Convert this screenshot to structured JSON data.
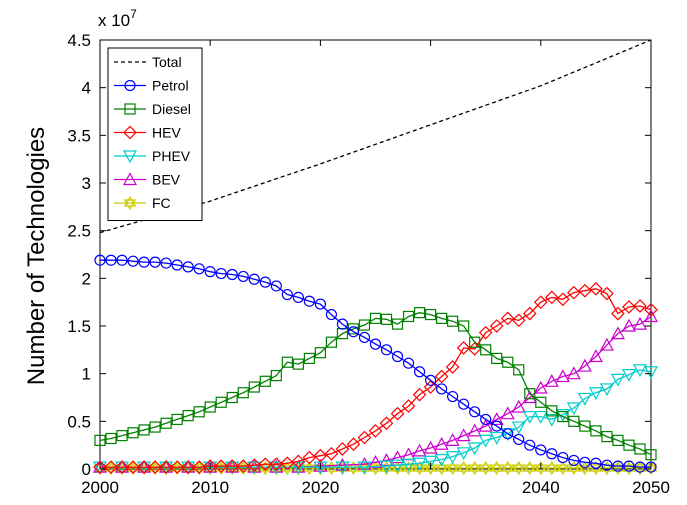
{
  "chart_data": {
    "type": "line",
    "title": "",
    "xlabel": "",
    "ylabel": "Number of Technologies",
    "y_multiplier": {
      "base": "x 10",
      "exponent": "7"
    },
    "xlim": [
      2000,
      2050
    ],
    "ylim": [
      0,
      4.5
    ],
    "x_ticks": [
      2000,
      2010,
      2020,
      2030,
      2040,
      2050
    ],
    "x_tick_labels": [
      "2000",
      "2010",
      "2020",
      "2030",
      "2040",
      "2050"
    ],
    "y_ticks": [
      0,
      0.5,
      1,
      1.5,
      2,
      2.5,
      3,
      3.5,
      4,
      4.5
    ],
    "y_tick_labels": [
      "0",
      "0.5",
      "1",
      "1.5",
      "2",
      "2.5",
      "3",
      "3.5",
      "4",
      "4.5"
    ],
    "grid": false,
    "legend_position": "top-left",
    "series": [
      {
        "name": "Total",
        "color": "#000000",
        "marker": "none",
        "line": "dashed",
        "x": [
          2000,
          2010,
          2020,
          2030,
          2040,
          2050
        ],
        "values": [
          2.48,
          2.81,
          3.2,
          3.61,
          4.02,
          4.5
        ]
      },
      {
        "name": "Petrol",
        "color": "#0000ff",
        "marker": "circle",
        "line": "solid",
        "x": [
          2000,
          2001,
          2002,
          2003,
          2004,
          2005,
          2006,
          2007,
          2008,
          2009,
          2010,
          2011,
          2012,
          2013,
          2014,
          2015,
          2016,
          2017,
          2018,
          2019,
          2020,
          2021,
          2022,
          2023,
          2024,
          2025,
          2026,
          2027,
          2028,
          2029,
          2030,
          2031,
          2032,
          2033,
          2034,
          2035,
          2036,
          2037,
          2038,
          2039,
          2040,
          2041,
          2042,
          2043,
          2044,
          2045,
          2046,
          2047,
          2048,
          2049,
          2050
        ],
        "values": [
          2.19,
          2.19,
          2.19,
          2.18,
          2.17,
          2.17,
          2.16,
          2.14,
          2.12,
          2.1,
          2.07,
          2.05,
          2.04,
          2.02,
          1.99,
          1.96,
          1.92,
          1.83,
          1.8,
          1.76,
          1.73,
          1.62,
          1.52,
          1.44,
          1.38,
          1.31,
          1.25,
          1.18,
          1.11,
          1.02,
          0.93,
          0.84,
          0.76,
          0.68,
          0.6,
          0.52,
          0.45,
          0.37,
          0.31,
          0.25,
          0.2,
          0.16,
          0.12,
          0.09,
          0.07,
          0.06,
          0.04,
          0.03,
          0.03,
          0.02,
          0.02
        ]
      },
      {
        "name": "Diesel",
        "color": "#008000",
        "marker": "square",
        "line": "solid",
        "x": [
          2000,
          2001,
          2002,
          2003,
          2004,
          2005,
          2006,
          2007,
          2008,
          2009,
          2010,
          2011,
          2012,
          2013,
          2014,
          2015,
          2016,
          2017,
          2018,
          2019,
          2020,
          2021,
          2022,
          2023,
          2024,
          2025,
          2026,
          2027,
          2028,
          2029,
          2030,
          2031,
          2032,
          2033,
          2034,
          2035,
          2036,
          2037,
          2038,
          2039,
          2040,
          2041,
          2042,
          2043,
          2044,
          2045,
          2046,
          2047,
          2048,
          2049,
          2050
        ],
        "values": [
          0.3,
          0.32,
          0.35,
          0.38,
          0.41,
          0.44,
          0.48,
          0.52,
          0.56,
          0.6,
          0.65,
          0.7,
          0.75,
          0.8,
          0.86,
          0.92,
          0.98,
          1.12,
          1.1,
          1.16,
          1.22,
          1.33,
          1.42,
          1.47,
          1.51,
          1.58,
          1.57,
          1.52,
          1.6,
          1.64,
          1.62,
          1.58,
          1.55,
          1.5,
          1.33,
          1.25,
          1.16,
          1.12,
          1.04,
          0.79,
          0.7,
          0.61,
          0.55,
          0.5,
          0.45,
          0.4,
          0.34,
          0.3,
          0.25,
          0.21,
          0.15
        ]
      },
      {
        "name": "HEV",
        "color": "#ff0000",
        "marker": "diamond",
        "line": "solid",
        "x": [
          2000,
          2001,
          2002,
          2003,
          2004,
          2005,
          2006,
          2007,
          2008,
          2009,
          2010,
          2011,
          2012,
          2013,
          2014,
          2015,
          2016,
          2017,
          2018,
          2019,
          2020,
          2021,
          2022,
          2023,
          2024,
          2025,
          2026,
          2027,
          2028,
          2029,
          2030,
          2031,
          2032,
          2033,
          2034,
          2035,
          2036,
          2037,
          2038,
          2039,
          2040,
          2041,
          2042,
          2043,
          2044,
          2045,
          2046,
          2047,
          2048,
          2049,
          2050
        ],
        "values": [
          0.02,
          0.02,
          0.02,
          0.02,
          0.02,
          0.02,
          0.02,
          0.02,
          0.02,
          0.02,
          0.03,
          0.03,
          0.03,
          0.03,
          0.04,
          0.05,
          0.05,
          0.06,
          0.08,
          0.12,
          0.14,
          0.16,
          0.21,
          0.26,
          0.33,
          0.4,
          0.48,
          0.58,
          0.66,
          0.78,
          0.86,
          0.97,
          1.07,
          1.27,
          1.26,
          1.43,
          1.5,
          1.58,
          1.56,
          1.63,
          1.75,
          1.8,
          1.78,
          1.85,
          1.87,
          1.89,
          1.84,
          1.63,
          1.7,
          1.71,
          1.67
        ]
      },
      {
        "name": "PHEV",
        "color": "#00cccc",
        "marker": "triangle-down",
        "line": "solid",
        "x": [
          2000,
          2002,
          2004,
          2006,
          2008,
          2010,
          2012,
          2014,
          2016,
          2018,
          2020,
          2022,
          2024,
          2026,
          2027,
          2028,
          2029,
          2030,
          2031,
          2032,
          2033,
          2034,
          2035,
          2036,
          2037,
          2038,
          2039,
          2040,
          2041,
          2042,
          2043,
          2044,
          2045,
          2046,
          2047,
          2048,
          2049,
          2050
        ],
        "values": [
          0.02,
          0.02,
          0.02,
          0.02,
          0.02,
          0.02,
          0.02,
          0.02,
          0.02,
          0.02,
          0.02,
          0.02,
          0.02,
          0.03,
          0.04,
          0.05,
          0.06,
          0.08,
          0.1,
          0.13,
          0.17,
          0.22,
          0.3,
          0.33,
          0.37,
          0.44,
          0.55,
          0.55,
          0.52,
          0.57,
          0.64,
          0.74,
          0.8,
          0.84,
          0.94,
          0.99,
          1.04,
          1.02
        ]
      },
      {
        "name": "BEV",
        "color": "#cc00cc",
        "marker": "triangle-up",
        "line": "solid",
        "x": [
          2000,
          2002,
          2004,
          2006,
          2008,
          2010,
          2012,
          2014,
          2016,
          2018,
          2020,
          2022,
          2024,
          2025,
          2026,
          2027,
          2028,
          2029,
          2030,
          2031,
          2032,
          2033,
          2034,
          2035,
          2036,
          2037,
          2038,
          2039,
          2040,
          2041,
          2042,
          2043,
          2044,
          2045,
          2046,
          2047,
          2048,
          2049,
          2050
        ],
        "values": [
          0.02,
          0.02,
          0.02,
          0.02,
          0.02,
          0.02,
          0.02,
          0.02,
          0.02,
          0.02,
          0.03,
          0.04,
          0.05,
          0.07,
          0.09,
          0.12,
          0.15,
          0.19,
          0.22,
          0.26,
          0.3,
          0.35,
          0.4,
          0.45,
          0.52,
          0.58,
          0.65,
          0.75,
          0.85,
          0.92,
          0.97,
          1.0,
          1.08,
          1.18,
          1.3,
          1.42,
          1.5,
          1.52,
          1.6
        ]
      },
      {
        "name": "FC",
        "color": "#cccc00",
        "marker": "hexagram",
        "line": "solid",
        "x": [
          2000,
          2001,
          2002,
          2003,
          2004,
          2005,
          2006,
          2007,
          2008,
          2009,
          2010,
          2011,
          2012,
          2013,
          2014,
          2015,
          2016,
          2017,
          2018,
          2019,
          2020,
          2021,
          2022,
          2023,
          2024,
          2025,
          2026,
          2027,
          2028,
          2029,
          2030,
          2031,
          2032,
          2033,
          2034,
          2035,
          2036,
          2037,
          2038,
          2039,
          2040,
          2041,
          2042,
          2043,
          2044,
          2045,
          2046,
          2047,
          2048,
          2049,
          2050
        ],
        "values": [
          0.01,
          0.01,
          0.01,
          0.01,
          0.01,
          0.01,
          0.01,
          0.01,
          0.01,
          0.01,
          0.01,
          0.01,
          0.01,
          0.01,
          0.01,
          0.01,
          0.01,
          0.01,
          0.01,
          0.01,
          0.01,
          0.01,
          0.01,
          0.01,
          0.01,
          0.01,
          0.01,
          0.01,
          0.01,
          0.01,
          0.01,
          0.01,
          0.01,
          0.01,
          0.01,
          0.01,
          0.01,
          0.01,
          0.01,
          0.01,
          0.01,
          0.01,
          0.01,
          0.01,
          0.01,
          0.01,
          0.01,
          0.01,
          0.01,
          0.01,
          0.01
        ]
      }
    ]
  }
}
